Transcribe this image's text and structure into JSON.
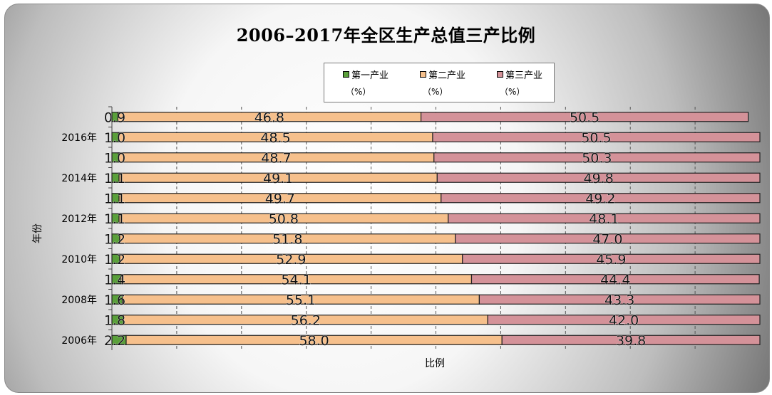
{
  "chart_data": {
    "type": "bar",
    "orientation": "horizontal",
    "stacked": true,
    "title": "2006–2017年全区生产总值三产比例",
    "xlabel": "比例",
    "ylabel": "年份",
    "categories": [
      "",
      "2016年",
      "",
      "2014年",
      "",
      "2012年",
      "",
      "2010年",
      "",
      "2008年",
      "",
      "2006年"
    ],
    "series": [
      {
        "name": "第一产业",
        "unit": "（%）",
        "color": "#5aa03a",
        "values": [
          0.9,
          1.0,
          1.0,
          1.1,
          1.1,
          1.1,
          1.2,
          1.2,
          1.4,
          1.6,
          1.8,
          2.2
        ]
      },
      {
        "name": "第二产业",
        "unit": "（%）",
        "color": "#f6c08c",
        "values": [
          46.8,
          48.5,
          48.7,
          49.1,
          49.7,
          50.8,
          51.8,
          52.9,
          54.1,
          55.1,
          56.2,
          58.0
        ]
      },
      {
        "name": "第三产业",
        "unit": "（%）",
        "color": "#d49299",
        "values": [
          50.5,
          50.5,
          50.3,
          49.8,
          49.2,
          48.1,
          47.0,
          45.9,
          44.4,
          43.3,
          42.0,
          39.8
        ]
      }
    ],
    "xlim": [
      0,
      100
    ],
    "grid": "vertical dashed",
    "legend_position": "top-center"
  }
}
